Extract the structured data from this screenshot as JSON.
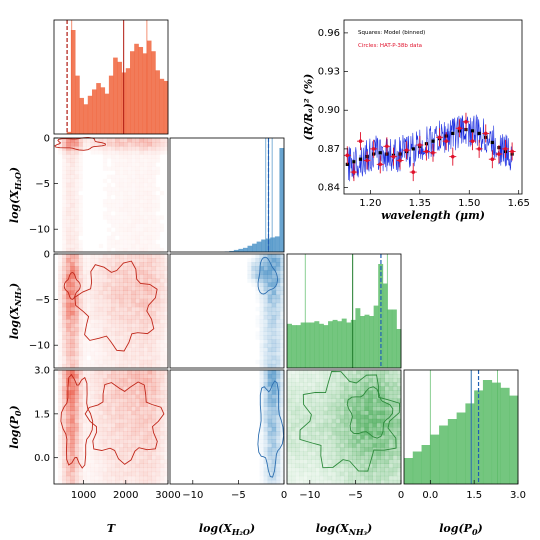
{
  "chart_data": [
    {
      "type": "corner",
      "parameters": [
        "T",
        "log(X_H2O)",
        "log(X_NH3)",
        "log(P0)"
      ],
      "axis_labels": {
        "x": [
          "T",
          "log(X",
          "log(X",
          "log(P"
        ],
        "x_subs": [
          "",
          "H₂O",
          "NH₃",
          "0"
        ],
        "y": [
          "log(X",
          "log(X",
          "log(P"
        ],
        "y_subs": [
          "H₂O",
          "NH₃",
          "0"
        ]
      },
      "ranges": {
        "T": [
          300,
          3000
        ],
        "log(X_H2O)": [
          -12.5,
          0
        ],
        "log(X_NH3)": [
          -12.5,
          0
        ],
        "log(P0)": [
          -0.9,
          3.0
        ]
      },
      "ticks": {
        "T": [
          1000,
          2000,
          3000
        ],
        "log(X_H2O)": [
          -10,
          -5,
          0
        ],
        "log(X_NH3)": [
          -10,
          -5,
          0
        ],
        "log(P0)": [
          0.0,
          1.5,
          3.0
        ]
      },
      "tick_labels": {
        "T": [
          "1000",
          "2000",
          "3000"
        ],
        "log(X_H2O)": [
          "−10",
          "−5",
          "0"
        ],
        "log(X_NH3)": [
          "−10",
          "−5",
          "0"
        ],
        "log(P0)": [
          "0.0",
          "1.5",
          "3.0"
        ]
      },
      "diagonal_histograms": [
        {
          "param": "T",
          "color": "#f0643c",
          "bins_x": [
            650,
            750,
            850,
            950,
            1050,
            1150,
            1250,
            1350,
            1450,
            1550,
            1650,
            1750,
            1850,
            1950,
            2050,
            2150,
            2250,
            2350,
            2450,
            2550,
            2650,
            2750,
            2850,
            2950
          ],
          "values": [
            0.02,
            0.98,
            0.55,
            0.34,
            0.28,
            0.36,
            0.42,
            0.48,
            0.44,
            0.38,
            0.55,
            0.72,
            0.68,
            0.58,
            0.62,
            0.78,
            0.85,
            0.82,
            0.76,
            0.88,
            0.78,
            0.6,
            0.52,
            0.5
          ],
          "median": 1950,
          "percentiles": [
            720,
            2500
          ],
          "best_fit": 610
        },
        {
          "param": "log(X_H2O)",
          "color": "#4d94c8",
          "bins_x": [
            -12.25,
            -11.75,
            -11.25,
            -10.75,
            -10.25,
            -9.75,
            -9.25,
            -8.75,
            -8.25,
            -7.75,
            -7.25,
            -6.75,
            -6.25,
            -5.75,
            -5.25,
            -4.75,
            -4.25,
            -3.75,
            -3.25,
            -2.75,
            -2.25,
            -1.75,
            -1.25,
            -0.75,
            -0.25
          ],
          "values": [
            0,
            0,
            0,
            0,
            0,
            0,
            0,
            0,
            0,
            0,
            0,
            0,
            0.005,
            0.01,
            0.02,
            0.03,
            0.04,
            0.06,
            0.08,
            0.1,
            0.12,
            0.13,
            0.14,
            0.15,
            1.0
          ],
          "median": -1.7,
          "percentiles": [
            -2.0,
            -1.3
          ],
          "best_fit": -1.7
        },
        {
          "param": "log(X_NH3)",
          "color": "#5cbc68",
          "bins_x": [
            -12.25,
            -11.75,
            -11.25,
            -10.75,
            -10.25,
            -9.75,
            -9.25,
            -8.75,
            -8.25,
            -7.75,
            -7.25,
            -6.75,
            -6.25,
            -5.75,
            -5.25,
            -4.75,
            -4.25,
            -3.75,
            -3.25,
            -2.75,
            -2.25,
            -1.75,
            -1.25,
            -0.75,
            -0.25
          ],
          "values": [
            0.34,
            0.33,
            0.33,
            0.35,
            0.35,
            0.35,
            0.36,
            0.34,
            0.33,
            0.36,
            0.37,
            0.36,
            0.38,
            0.35,
            0.37,
            0.46,
            0.4,
            0.41,
            0.4,
            0.48,
            0.8,
            0.65,
            0.45,
            0.45,
            0.3
          ],
          "median": -5.3,
          "percentiles": [
            -10.5,
            -1.5
          ],
          "best_fit": -2.2
        },
        {
          "param": "log(P0)",
          "color": "#5cbc68",
          "bins_x": [
            -0.75,
            -0.45,
            -0.15,
            0.15,
            0.45,
            0.75,
            1.05,
            1.35,
            1.65,
            1.95,
            2.25,
            2.55,
            2.85
          ],
          "values": [
            0.2,
            0.25,
            0.3,
            0.38,
            0.45,
            0.5,
            0.55,
            0.62,
            0.72,
            0.8,
            0.78,
            0.74,
            0.68
          ],
          "median": 1.4,
          "percentiles": [
            0.0,
            2.3
          ],
          "best_fit": 1.65
        }
      ]
    },
    {
      "type": "line",
      "title": "",
      "xlabel": "wavelength (μm)",
      "ylabel": "(R/Rₐ)² (%)",
      "xlim": [
        1.12,
        1.66
      ],
      "ylim": [
        0.835,
        0.97
      ],
      "xticks": [
        1.2,
        1.35,
        1.5,
        1.65
      ],
      "xtick_labels": [
        "1.20",
        "1.35",
        "1.50",
        "1.65"
      ],
      "yticks": [
        0.84,
        0.87,
        0.9,
        0.93,
        0.96
      ],
      "ytick_labels": [
        "0.84",
        "0.87",
        "0.90",
        "0.93",
        "0.96"
      ],
      "legend": [
        {
          "label": "Squares: Model (binned)",
          "color": "#000000"
        },
        {
          "label": "Circles: HAT-P-38b data",
          "color": "#e0112b"
        }
      ],
      "legend_placement": "top-left",
      "series": [
        {
          "name": "Squares: Model (binned)",
          "color": "#000000",
          "x": [
            1.13,
            1.15,
            1.17,
            1.19,
            1.21,
            1.23,
            1.25,
            1.27,
            1.29,
            1.31,
            1.33,
            1.35,
            1.37,
            1.39,
            1.41,
            1.43,
            1.45,
            1.47,
            1.49,
            1.51,
            1.53,
            1.55,
            1.57,
            1.59,
            1.61,
            1.63
          ],
          "y": [
            0.858,
            0.86,
            0.862,
            0.864,
            0.866,
            0.867,
            0.866,
            0.865,
            0.866,
            0.868,
            0.87,
            0.872,
            0.874,
            0.876,
            0.878,
            0.88,
            0.882,
            0.884,
            0.885,
            0.884,
            0.882,
            0.879,
            0.875,
            0.871,
            0.868,
            0.866
          ]
        },
        {
          "name": "Circles: HAT-P-38b data",
          "color": "#e0112b",
          "x": [
            1.13,
            1.15,
            1.17,
            1.19,
            1.21,
            1.23,
            1.25,
            1.27,
            1.29,
            1.31,
            1.33,
            1.35,
            1.37,
            1.39,
            1.41,
            1.43,
            1.45,
            1.47,
            1.49,
            1.51,
            1.53,
            1.55,
            1.57,
            1.59,
            1.61,
            1.63
          ],
          "y": [
            0.865,
            0.852,
            0.876,
            0.861,
            0.87,
            0.858,
            0.872,
            0.864,
            0.861,
            0.869,
            0.852,
            0.873,
            0.868,
            0.867,
            0.879,
            0.876,
            0.864,
            0.886,
            0.891,
            0.876,
            0.87,
            0.882,
            0.862,
            0.866,
            0.87,
            0.868
          ],
          "yerr": [
            0.007,
            0.007,
            0.007,
            0.007,
            0.007,
            0.007,
            0.007,
            0.007,
            0.007,
            0.007,
            0.007,
            0.007,
            0.007,
            0.007,
            0.007,
            0.007,
            0.007,
            0.007,
            0.007,
            0.007,
            0.007,
            0.007,
            0.007,
            0.007,
            0.007,
            0.007
          ]
        }
      ],
      "model_spectrum_color": "#1d2fe0"
    }
  ]
}
